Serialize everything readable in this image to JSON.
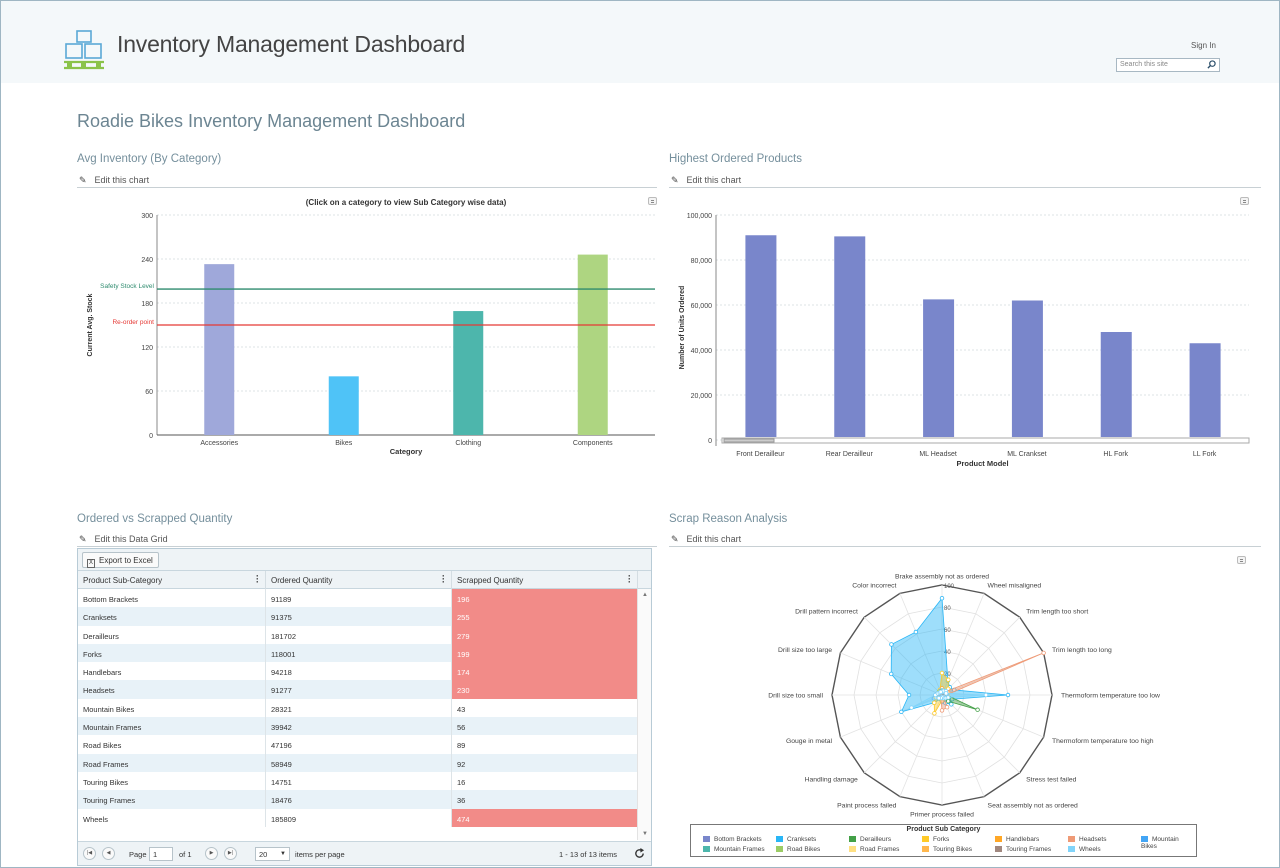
{
  "header": {
    "app_title": "Inventory Management Dashboard",
    "sign_in": "Sign In",
    "search_placeholder": "Search this site"
  },
  "page": {
    "title": "Roadie Bikes Inventory Management Dashboard"
  },
  "sections": {
    "avg_inventory": {
      "title": "Avg Inventory (By Category)",
      "edit": "Edit this chart"
    },
    "highest_ordered": {
      "title": "Highest Ordered Products",
      "edit": "Edit this chart"
    },
    "ordered_scrapped": {
      "title": "Ordered vs Scrapped Quantity",
      "edit": "Edit this Data Grid"
    },
    "scrap_reason": {
      "title": "Scrap Reason Analysis",
      "edit": "Edit this chart"
    }
  },
  "chart_data": [
    {
      "type": "bar",
      "title": "(Click on a category to view Sub Category wise data)",
      "xlabel": "Category",
      "ylabel": "Current Avg. Stock",
      "ylim": [
        0,
        300
      ],
      "yticks": [
        0,
        60,
        120,
        180,
        240,
        300
      ],
      "categories": [
        "Accessories",
        "Bikes",
        "Clothing",
        "Components"
      ],
      "values": [
        233,
        80,
        169,
        246
      ],
      "bar_colors": [
        "#9fa8da",
        "#4fc3f7",
        "#4db6ac",
        "#aed581"
      ],
      "reference_lines": [
        {
          "label": "Safety Stock Level",
          "value": 199,
          "color": "#2e8b6e"
        },
        {
          "label": "Re-order point",
          "value": 150,
          "color": "#e53935"
        }
      ],
      "grid": true
    },
    {
      "type": "bar",
      "title": "",
      "xlabel": "Product Model",
      "ylabel": "Number of Units Ordered",
      "ylim": [
        0,
        100000
      ],
      "yticks": [
        0,
        20000,
        40000,
        60000,
        80000,
        100000
      ],
      "ytick_labels": [
        "0",
        "20,000",
        "40,000",
        "60,000",
        "80,000",
        "100,000"
      ],
      "categories": [
        "Front Derailleur",
        "Rear Derailleur",
        "ML Headset",
        "ML Crankset",
        "HL Fork",
        "LL Fork"
      ],
      "values": [
        91000,
        90500,
        62500,
        62000,
        48000,
        43000
      ],
      "bar_color": "#7986cb",
      "grid": true
    },
    {
      "type": "radar",
      "title": "",
      "axes": [
        "Brake assembly not as ordered",
        "Wheel misaligned",
        "Trim length too short",
        "Trim length too long",
        "Thermoform temperature too low",
        "Thermoform temperature too high",
        "Stress test failed",
        "Seat assembly not as ordered",
        "Primer process failed",
        "Paint process failed",
        "Handling damage",
        "Gouge in metal",
        "Drill size too small",
        "Drill size too large",
        "Drill pattern incorrect",
        "Color incorrect"
      ],
      "rlim": [
        0,
        100
      ],
      "rticks": [
        0,
        20,
        40,
        60,
        80,
        100
      ],
      "legend_title": "Product Sub Category",
      "legend_position": "bottom",
      "series": [
        {
          "name": "Bottom Brackets",
          "color": "#7986cb",
          "values": [
            4,
            3,
            2,
            1,
            3,
            2,
            4,
            3,
            2,
            3,
            4,
            8,
            6,
            3,
            2,
            3
          ]
        },
        {
          "name": "Cranksets",
          "color": "#29b6f6",
          "values": [
            88,
            14,
            10,
            12,
            60,
            10,
            12,
            8,
            6,
            4,
            10,
            40,
            30,
            50,
            65,
            62
          ]
        },
        {
          "name": "Derailleurs",
          "color": "#43a047",
          "values": [
            3,
            2,
            3,
            2,
            4,
            35,
            8,
            4,
            3,
            2,
            2,
            3,
            2,
            3,
            3,
            2
          ]
        },
        {
          "name": "Forks",
          "color": "#ffca28",
          "values": [
            20,
            15,
            8,
            6,
            5,
            4,
            3,
            4,
            5,
            18,
            10,
            6,
            3,
            2,
            4,
            5
          ]
        },
        {
          "name": "Handlebars",
          "color": "#ffa726",
          "values": [
            6,
            3,
            2,
            2,
            3,
            2,
            3,
            2,
            3,
            3,
            4,
            3,
            2,
            2,
            3,
            4
          ]
        },
        {
          "name": "Headsets",
          "color": "#ef9a76",
          "values": [
            2,
            3,
            4,
            100,
            4,
            3,
            2,
            12,
            14,
            3,
            2,
            3,
            2,
            3,
            2,
            2
          ]
        },
        {
          "name": "Mountain Bikes",
          "color": "#42a5f5",
          "values": [
            3,
            4,
            3,
            2,
            4,
            3,
            4,
            3,
            2,
            3,
            4,
            3,
            5,
            4,
            3,
            4
          ]
        },
        {
          "name": "Mountain Frames",
          "color": "#4db6ac",
          "values": [
            4,
            3,
            2,
            3,
            2,
            3,
            4,
            3,
            2,
            3,
            2,
            3,
            4,
            3,
            2,
            3
          ]
        },
        {
          "name": "Road Bikes",
          "color": "#9ccc65",
          "values": [
            3,
            2,
            3,
            2,
            3,
            4,
            2,
            3,
            2,
            3,
            2,
            3,
            2,
            3,
            4,
            3
          ]
        },
        {
          "name": "Road Frames",
          "color": "#ffe082",
          "values": [
            2,
            3,
            2,
            3,
            2,
            3,
            2,
            3,
            2,
            3,
            2,
            3,
            2,
            3,
            2,
            3
          ]
        },
        {
          "name": "Touring Bikes",
          "color": "#ffb74d",
          "values": [
            3,
            2,
            2,
            3,
            3,
            2,
            3,
            2,
            3,
            2,
            3,
            2,
            3,
            2,
            3,
            2
          ]
        },
        {
          "name": "Touring Frames",
          "color": "#a1887f",
          "values": [
            2,
            2,
            3,
            2,
            3,
            2,
            2,
            3,
            2,
            2,
            3,
            2,
            2,
            3,
            2,
            2
          ]
        },
        {
          "name": "Wheels",
          "color": "#81d4fa",
          "values": [
            3,
            4,
            5,
            4,
            40,
            6,
            4,
            3,
            2,
            3,
            4,
            30,
            6,
            4,
            3,
            3
          ]
        }
      ]
    }
  ],
  "grid": {
    "export_label": "Export to Excel",
    "columns": [
      "Product Sub-Category",
      "Ordered Quantity",
      "Scrapped Quantity"
    ],
    "rows": [
      {
        "sub": "Bottom Brackets",
        "ordered": "91189",
        "scrapped": "196",
        "flag": true
      },
      {
        "sub": "Cranksets",
        "ordered": "91375",
        "scrapped": "255",
        "flag": true
      },
      {
        "sub": "Derailleurs",
        "ordered": "181702",
        "scrapped": "279",
        "flag": true
      },
      {
        "sub": "Forks",
        "ordered": "118001",
        "scrapped": "199",
        "flag": true
      },
      {
        "sub": "Handlebars",
        "ordered": "94218",
        "scrapped": "174",
        "flag": true
      },
      {
        "sub": "Headsets",
        "ordered": "91277",
        "scrapped": "230",
        "flag": true
      },
      {
        "sub": "Mountain Bikes",
        "ordered": "28321",
        "scrapped": "43",
        "flag": false
      },
      {
        "sub": "Mountain Frames",
        "ordered": "39942",
        "scrapped": "56",
        "flag": false
      },
      {
        "sub": "Road Bikes",
        "ordered": "47196",
        "scrapped": "89",
        "flag": false
      },
      {
        "sub": "Road Frames",
        "ordered": "58949",
        "scrapped": "92",
        "flag": false
      },
      {
        "sub": "Touring Bikes",
        "ordered": "14751",
        "scrapped": "16",
        "flag": false
      },
      {
        "sub": "Touring Frames",
        "ordered": "18476",
        "scrapped": "36",
        "flag": false
      },
      {
        "sub": "Wheels",
        "ordered": "185809",
        "scrapped": "474",
        "flag": true
      }
    ],
    "pager": {
      "page_label": "Page",
      "page_value": "1",
      "of_label": "of 1",
      "page_size": "20",
      "items_per_page": "items per page",
      "summary": "1 - 13 of 13 items"
    }
  },
  "icons": {
    "pencil": "pencil-icon",
    "search": "search-icon",
    "refresh": "refresh-icon",
    "excel": "excel-icon",
    "logo": "warehouse-boxes-logo"
  }
}
